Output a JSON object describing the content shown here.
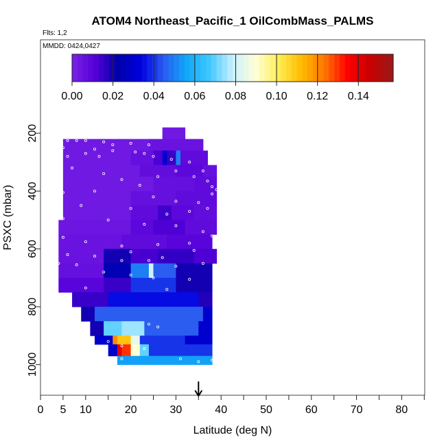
{
  "chart_data": {
    "type": "heatmap",
    "title": "ATOM4 Northeast_Pacific_1 OilCombMass_PALMS",
    "flights_label": "Flts: 1,2",
    "date_label": "MMDD: 0424,0427",
    "xlabel": "Latitude (deg N)",
    "ylabel": "PSXC (mbar)",
    "xlim": [
      0,
      85
    ],
    "ylim": [
      1000,
      100
    ],
    "x_ticks": [
      0,
      5,
      10,
      20,
      30,
      40,
      50,
      60,
      70,
      80
    ],
    "x_minor_ticks": [
      15,
      25,
      35,
      45,
      55,
      65,
      75,
      85
    ],
    "y_ticks": [
      200,
      400,
      600,
      800,
      1000
    ],
    "colorbar": {
      "range": [
        0,
        0.157
      ],
      "ticks": [
        0.0,
        0.02,
        0.04,
        0.06,
        0.08,
        0.1,
        0.12,
        0.14
      ],
      "tick_labels": [
        "0.00",
        "0.02",
        "0.04",
        "0.06",
        "0.08",
        "0.10",
        "0.12",
        "0.14"
      ],
      "colors": [
        "#7a22e6",
        "#5500d8",
        "#0000a8",
        "#0000e0",
        "#2a5cf0",
        "#10a8f8",
        "#40c8ff",
        "#c8f0ff",
        "#ffffd8",
        "#ffee55",
        "#ffbb00",
        "#ff7700",
        "#ff0000",
        "#c80000",
        "#9a1a1a"
      ]
    },
    "arrow_marker_x": 35,
    "cells": [
      {
        "y0": 180,
        "y1": 220,
        "segs": [
          [
            27,
            32,
            0.003
          ]
        ]
      },
      {
        "y0": 220,
        "y1": 260,
        "segs": [
          [
            5,
            24,
            0.003
          ],
          [
            24,
            36,
            0.005
          ]
        ]
      },
      {
        "y0": 260,
        "y1": 310,
        "segs": [
          [
            5,
            20,
            0.003
          ],
          [
            20,
            25,
            0.006
          ],
          [
            25,
            27,
            0.012
          ],
          [
            27,
            28,
            0.03
          ],
          [
            28,
            30,
            0.015
          ],
          [
            30,
            31,
            0.05
          ],
          [
            31,
            37,
            0.008
          ]
        ]
      },
      {
        "y0": 310,
        "y1": 350,
        "segs": [
          [
            5,
            22,
            0.003
          ],
          [
            22,
            30,
            0.007
          ],
          [
            30,
            36,
            0.009
          ],
          [
            36,
            39,
            0.006
          ]
        ]
      },
      {
        "y0": 350,
        "y1": 400,
        "segs": [
          [
            5,
            25,
            0.003
          ],
          [
            25,
            34,
            0.006
          ],
          [
            34,
            39,
            0.008
          ]
        ]
      },
      {
        "y0": 400,
        "y1": 450,
        "segs": [
          [
            5,
            20,
            0.003
          ],
          [
            20,
            30,
            0.006
          ],
          [
            30,
            39,
            0.008
          ]
        ]
      },
      {
        "y0": 450,
        "y1": 500,
        "segs": [
          [
            5,
            20,
            0.003
          ],
          [
            20,
            26,
            0.008
          ],
          [
            26,
            29,
            0.014
          ],
          [
            29,
            34,
            0.009
          ],
          [
            34,
            39,
            0.007
          ]
        ]
      },
      {
        "y0": 500,
        "y1": 550,
        "segs": [
          [
            4,
            20,
            0.004
          ],
          [
            20,
            25,
            0.009
          ],
          [
            25,
            32,
            0.012
          ],
          [
            32,
            39,
            0.008
          ]
        ]
      },
      {
        "y0": 550,
        "y1": 600,
        "segs": [
          [
            4,
            18,
            0.005
          ],
          [
            18,
            28,
            0.008
          ],
          [
            28,
            38,
            0.01
          ]
        ]
      },
      {
        "y0": 600,
        "y1": 650,
        "segs": [
          [
            4,
            14,
            0.005
          ],
          [
            14,
            20,
            0.02
          ],
          [
            20,
            26,
            0.013
          ],
          [
            26,
            34,
            0.016
          ],
          [
            34,
            39,
            0.012
          ]
        ]
      },
      {
        "y0": 650,
        "y1": 700,
        "segs": [
          [
            4,
            14,
            0.006
          ],
          [
            14,
            20,
            0.025
          ],
          [
            20,
            24,
            0.05
          ],
          [
            24,
            25,
            0.08
          ],
          [
            25,
            30,
            0.045
          ],
          [
            30,
            38,
            0.02
          ]
        ]
      },
      {
        "y0": 700,
        "y1": 750,
        "segs": [
          [
            4,
            14,
            0.01
          ],
          [
            14,
            20,
            0.015
          ],
          [
            20,
            30,
            0.04
          ],
          [
            30,
            38,
            0.02
          ]
        ]
      },
      {
        "y0": 750,
        "y1": 800,
        "segs": [
          [
            7,
            15,
            0.015
          ],
          [
            15,
            35,
            0.035
          ],
          [
            35,
            38,
            0.018
          ]
        ]
      },
      {
        "y0": 800,
        "y1": 850,
        "segs": [
          [
            9,
            12,
            0.02
          ],
          [
            12,
            36,
            0.045
          ],
          [
            36,
            38,
            0.03
          ]
        ]
      },
      {
        "y0": 850,
        "y1": 900,
        "segs": [
          [
            11,
            14,
            0.02
          ],
          [
            14,
            18,
            0.07
          ],
          [
            18,
            23,
            0.075
          ],
          [
            23,
            35,
            0.045
          ],
          [
            35,
            38,
            0.03
          ]
        ]
      },
      {
        "y0": 900,
        "y1": 930,
        "segs": [
          [
            12,
            14,
            0.03
          ],
          [
            14,
            16,
            0.03
          ],
          [
            16,
            17,
            0.12
          ],
          [
            17,
            20,
            0.11
          ],
          [
            20,
            22,
            0.085
          ],
          [
            22,
            32,
            0.04
          ],
          [
            32,
            38,
            0.03
          ]
        ]
      },
      {
        "y0": 930,
        "y1": 970,
        "segs": [
          [
            15,
            17,
            0.03
          ],
          [
            17,
            18,
            0.14
          ],
          [
            18,
            20,
            0.13
          ],
          [
            20,
            22,
            0.09
          ],
          [
            22,
            24,
            0.07
          ],
          [
            24,
            38,
            0.04
          ]
        ]
      },
      {
        "y0": 970,
        "y1": 1000,
        "segs": [
          [
            17,
            38,
            0.055
          ]
        ]
      }
    ],
    "points": [
      [
        6,
        225
      ],
      [
        8,
        225
      ],
      [
        10,
        225
      ],
      [
        14,
        230
      ],
      [
        16,
        240
      ],
      [
        20,
        235
      ],
      [
        24,
        240
      ],
      [
        12,
        255
      ],
      [
        16,
        260
      ],
      [
        21,
        265
      ],
      [
        23,
        270
      ],
      [
        25,
        280
      ],
      [
        29,
        290
      ],
      [
        33,
        300
      ],
      [
        5,
        250
      ],
      [
        6,
        280
      ],
      [
        10,
        270
      ],
      [
        13,
        280
      ],
      [
        7,
        320
      ],
      [
        14,
        340
      ],
      [
        18,
        360
      ],
      [
        22,
        380
      ],
      [
        26,
        350
      ],
      [
        30,
        330
      ],
      [
        34,
        350
      ],
      [
        37,
        365
      ],
      [
        38,
        385
      ],
      [
        39,
        395
      ],
      [
        36,
        330
      ],
      [
        5,
        405
      ],
      [
        12,
        400
      ],
      [
        25,
        420
      ],
      [
        30,
        435
      ],
      [
        35,
        440
      ],
      [
        38,
        410
      ],
      [
        9,
        450
      ],
      [
        20,
        460
      ],
      [
        28,
        480
      ],
      [
        33,
        470
      ],
      [
        37,
        460
      ],
      [
        5,
        495
      ],
      [
        15,
        500
      ],
      [
        23,
        515
      ],
      [
        30,
        520
      ],
      [
        36,
        540
      ],
      [
        5,
        560
      ],
      [
        10,
        575
      ],
      [
        18,
        590
      ],
      [
        26,
        585
      ],
      [
        33,
        580
      ],
      [
        38,
        555
      ],
      [
        6,
        620
      ],
      [
        12,
        625
      ],
      [
        20,
        610
      ],
      [
        27,
        630
      ],
      [
        34,
        605
      ],
      [
        4,
        650
      ],
      [
        8,
        655
      ],
      [
        18,
        640
      ],
      [
        24,
        640
      ],
      [
        30,
        660
      ],
      [
        36,
        650
      ],
      [
        14,
        680
      ],
      [
        20,
        690
      ],
      [
        25,
        700
      ],
      [
        33,
        705
      ],
      [
        10,
        735
      ],
      [
        28,
        740
      ],
      [
        24,
        860
      ],
      [
        26,
        870
      ],
      [
        15,
        920
      ],
      [
        18,
        935
      ],
      [
        23,
        945
      ],
      [
        31,
        980
      ],
      [
        18,
        980
      ],
      [
        35,
        990
      ],
      [
        38,
        985
      ]
    ]
  }
}
